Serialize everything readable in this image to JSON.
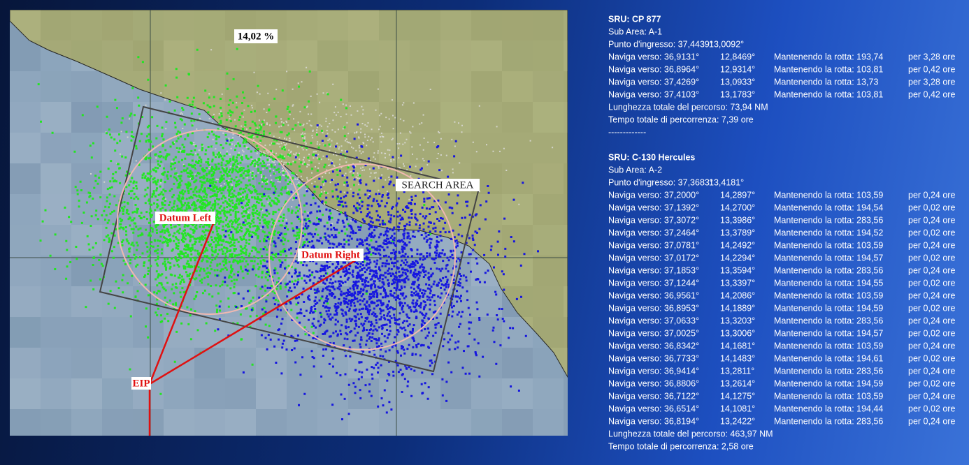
{
  "map": {
    "coverage": "14,02 %",
    "search_area": "SEARCH AREA",
    "datum_left": "Datum Left",
    "datum_right": "Datum Right",
    "eip": "EIP"
  },
  "panel": {
    "sections": [
      {
        "title": "SRU: CP 877",
        "sub_area": "Sub Area: A-1",
        "entry": [
          "Punto d'ingresso: 37,4439°",
          "13,0092°"
        ],
        "rows": [
          [
            "Naviga verso: 36,9131°",
            "12,8469°",
            "Mantenendo la rotta: 193,74",
            "per 3,28 ore"
          ],
          [
            "Naviga verso: 36,8964°",
            "12,9314°",
            "Mantenendo la rotta: 103,81",
            "per 0,42 ore"
          ],
          [
            "Naviga verso: 37,4269°",
            "13,0933°",
            "Mantenendo la rotta: 13,73",
            "per 3,28 ore"
          ],
          [
            "Naviga verso: 37,4103°",
            "13,1783°",
            "Mantenendo la rotta: 103,81",
            "per 0,42 ore"
          ]
        ],
        "length": "Lunghezza totale del percorso: 73,94 NM",
        "time": "Tempo totale di percorrenza: 7,39 ore",
        "separator": "-------------"
      },
      {
        "title": "SRU: C-130 Hercules",
        "sub_area": "Sub Area: A-2",
        "entry": [
          "Punto d'ingresso: 37,3683°",
          "13,4181°"
        ],
        "rows": [
          [
            "Naviga verso: 37,2000°",
            "14,2897°",
            "Mantenendo la rotta: 103,59",
            "per 0,24 ore"
          ],
          [
            "Naviga verso: 37,1392°",
            "14,2700°",
            "Mantenendo la rotta: 194,54",
            "per 0,02 ore"
          ],
          [
            "Naviga verso: 37,3072°",
            "13,3986°",
            "Mantenendo la rotta: 283,56",
            "per 0,24 ore"
          ],
          [
            "Naviga verso: 37,2464°",
            "13,3789°",
            "Mantenendo la rotta: 194,52",
            "per 0,02 ore"
          ],
          [
            "Naviga verso: 37,0781°",
            "14,2492°",
            "Mantenendo la rotta: 103,59",
            "per 0,24 ore"
          ],
          [
            "Naviga verso: 37,0172°",
            "14,2294°",
            "Mantenendo la rotta: 194,57",
            "per 0,02 ore"
          ],
          [
            "Naviga verso: 37,1853°",
            "13,3594°",
            "Mantenendo la rotta: 283,56",
            "per 0,24 ore"
          ],
          [
            "Naviga verso: 37,1244°",
            "13,3397°",
            "Mantenendo la rotta: 194,55",
            "per 0,02 ore"
          ],
          [
            "Naviga verso: 36,9561°",
            "14,2086°",
            "Mantenendo la rotta: 103,59",
            "per 0,24 ore"
          ],
          [
            "Naviga verso: 36,8953°",
            "14,1889°",
            "Mantenendo la rotta: 194,59",
            "per 0,02 ore"
          ],
          [
            "Naviga verso: 37,0633°",
            "13,3203°",
            "Mantenendo la rotta: 283,56",
            "per 0,24 ore"
          ],
          [
            "Naviga verso: 37,0025°",
            "13,3006°",
            "Mantenendo la rotta: 194,57",
            "per 0,02 ore"
          ],
          [
            "Naviga verso: 36,8342°",
            "14,1681°",
            "Mantenendo la rotta: 103,59",
            "per 0,24 ore"
          ],
          [
            "Naviga verso: 36,7733°",
            "14,1483°",
            "Mantenendo la rotta: 194,61",
            "per 0,02 ore"
          ],
          [
            "Naviga verso: 36,9414°",
            "13,2811°",
            "Mantenendo la rotta: 283,56",
            "per 0,24 ore"
          ],
          [
            "Naviga verso: 36,8806°",
            "13,2614°",
            "Mantenendo la rotta: 194,59",
            "per 0,02 ore"
          ],
          [
            "Naviga verso: 36,7122°",
            "14,1275°",
            "Mantenendo la rotta: 103,59",
            "per 0,24 ore"
          ],
          [
            "Naviga verso: 36,6514°",
            "14,1081°",
            "Mantenendo la rotta: 194,44",
            "per 0,02 ore"
          ],
          [
            "Naviga verso: 36,8194°",
            "13,2422°",
            "Mantenendo la rotta: 283,56",
            "per 0,24 ore"
          ]
        ],
        "length": "Lunghezza totale del percorso: 463,97 NM",
        "time": "Tempo totale di percorrenza: 2,58 ore"
      }
    ]
  }
}
